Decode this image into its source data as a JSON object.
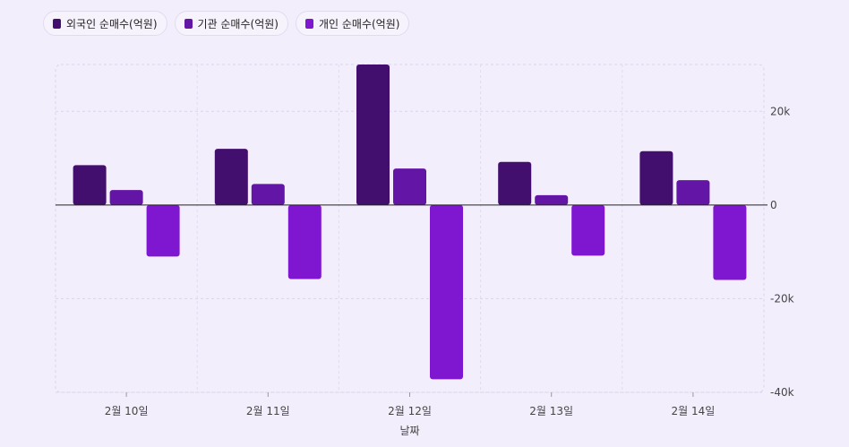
{
  "chart_data": {
    "type": "bar",
    "categories": [
      "2월 10일",
      "2월 11일",
      "2월 12일",
      "2월 13일",
      "2월 14일"
    ],
    "series": [
      {
        "name": "외국인 순매수(억원)",
        "color": "#430f6e",
        "values": [
          8500,
          12000,
          30000,
          9200,
          11500
        ]
      },
      {
        "name": "기관 순매수(억원)",
        "color": "#6316a6",
        "values": [
          3200,
          4500,
          7800,
          2100,
          5300
        ]
      },
      {
        "name": "개인 순매수(억원)",
        "color": "#7f17d1",
        "values": [
          -11000,
          -15800,
          -37200,
          -10800,
          -16000
        ]
      }
    ],
    "xlabel": "날짜",
    "ylabel": "",
    "ylim": [
      -40000,
      30000
    ],
    "yticks": [
      20000,
      0,
      -20000,
      -40000
    ],
    "ytick_labels": [
      "20k",
      "0",
      "-20k",
      "-40k"
    ],
    "legend_position": "top-left",
    "grid": true
  }
}
